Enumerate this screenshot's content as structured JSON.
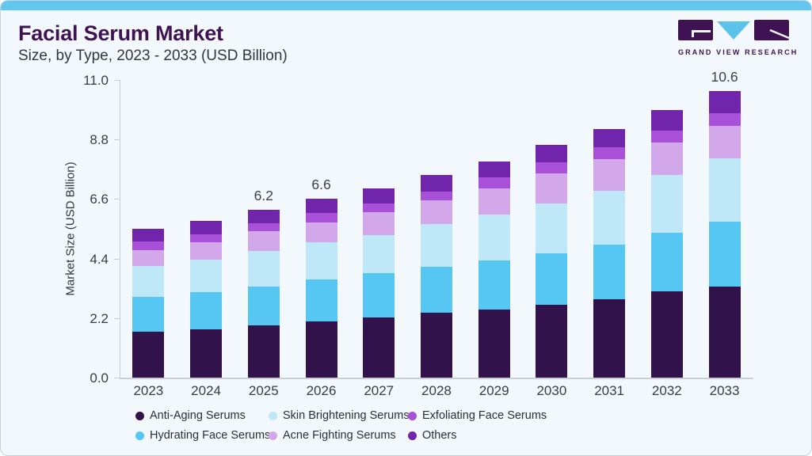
{
  "page": {
    "title": "Facial Serum Market",
    "subtitle": "Size, by Type, 2023 - 2033 (USD Billion)"
  },
  "logo": {
    "name": "grand-view-research-logo",
    "text": "GRAND VIEW RESEARCH"
  },
  "colors": {
    "accent_strip": "#63C7F0",
    "brand_purple": "#3E1253",
    "card_background": "#F3F8FC",
    "card_border": "#C6D3DE",
    "axis_line": "#C7CED6",
    "text_dark": "#35353D"
  },
  "chart_data": {
    "type": "bar",
    "stacked": true,
    "title": "Facial Serum Market Size, by Type, 2023 - 2033 (USD Billion)",
    "xlabel": "",
    "ylabel": "Market Size (USD Billion)",
    "ylim": [
      0,
      11
    ],
    "ytick_labels": [
      "0.0",
      "2.2",
      "4.4",
      "6.6",
      "8.8",
      "11.0"
    ],
    "grid": false,
    "legend_position": "bottom",
    "categories": [
      "2023",
      "2024",
      "2025",
      "2026",
      "2027",
      "2028",
      "2029",
      "2030",
      "2031",
      "2032",
      "2033"
    ],
    "totals": [
      5.5,
      5.8,
      6.2,
      6.6,
      7.0,
      7.5,
      8.0,
      8.6,
      9.2,
      9.9,
      10.6
    ],
    "labels_above": {
      "2025": "6.2",
      "2026": "6.6",
      "2033": "10.6"
    },
    "series": [
      {
        "name": "Anti-Aging Serums",
        "color": "#31124A",
        "values": [
          1.71,
          1.8,
          1.93,
          2.08,
          2.22,
          2.4,
          2.53,
          2.7,
          2.9,
          3.18,
          3.38
        ]
      },
      {
        "name": "Hydrating Face Serums",
        "color": "#56C7F3",
        "values": [
          1.27,
          1.37,
          1.43,
          1.54,
          1.64,
          1.71,
          1.8,
          1.9,
          2.02,
          2.18,
          2.4
        ]
      },
      {
        "name": "Skin Brightening Serums",
        "color": "#BEE7F8",
        "values": [
          1.14,
          1.2,
          1.32,
          1.39,
          1.42,
          1.58,
          1.7,
          1.84,
          1.98,
          2.12,
          2.32
        ]
      },
      {
        "name": "Acne Fighting Serums",
        "color": "#D2A8EB",
        "values": [
          0.6,
          0.65,
          0.72,
          0.74,
          0.84,
          0.85,
          0.97,
          1.1,
          1.18,
          1.2,
          1.22
        ]
      },
      {
        "name": "Exfoliating Face Serums",
        "color": "#A850D8",
        "values": [
          0.31,
          0.28,
          0.32,
          0.33,
          0.33,
          0.34,
          0.4,
          0.42,
          0.43,
          0.46,
          0.46
        ]
      },
      {
        "name": "Others",
        "color": "#7124AC",
        "values": [
          0.47,
          0.5,
          0.48,
          0.52,
          0.55,
          0.62,
          0.6,
          0.64,
          0.69,
          0.76,
          0.82
        ]
      }
    ]
  },
  "legend": {
    "items": [
      {
        "label": "Anti-Aging Serums",
        "color": "#31124A"
      },
      {
        "label": "Skin Brightening Serums",
        "color": "#BEE7F8"
      },
      {
        "label": "Exfoliating Face Serums",
        "color": "#A850D8"
      },
      {
        "label": "Hydrating Face Serums",
        "color": "#56C7F3"
      },
      {
        "label": "Acne Fighting Serums",
        "color": "#D2A8EB"
      },
      {
        "label": "Others",
        "color": "#7124AC"
      }
    ]
  }
}
